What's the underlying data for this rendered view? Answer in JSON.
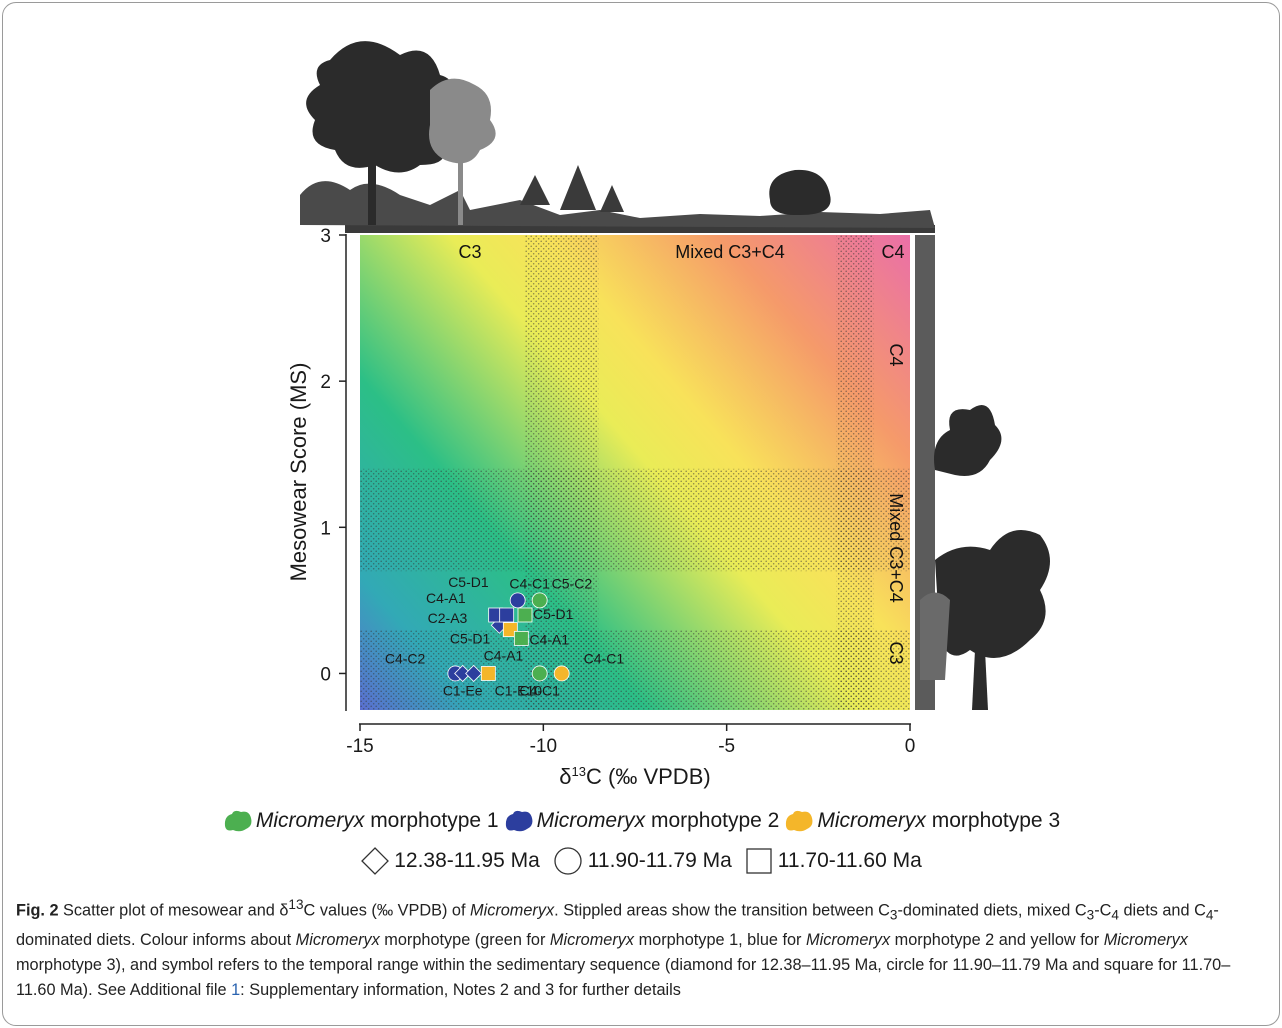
{
  "chart_data": {
    "type": "scatter",
    "xlabel_prefix": "δ",
    "xlabel_sup": "13",
    "xlabel_rest": "C (‰ VPDB)",
    "ylabel": "Mesowear Score (MS)",
    "xlim": [
      -15,
      0
    ],
    "ylim": [
      -0.25,
      3
    ],
    "xticks": [
      -15,
      -10,
      -5,
      0
    ],
    "yticks": [
      0,
      1,
      2,
      3
    ],
    "grid": false,
    "background": "diagonal gradient blue-green (low δ13C, low MS) to yellow to pink (high δ13C, high MS)",
    "stippled_x_bands": [
      [
        -10.5,
        -8.5
      ],
      [
        -2.0,
        -1.0
      ]
    ],
    "stippled_y_bands": [
      [
        0.7,
        1.4
      ],
      [
        -0.25,
        0.3
      ]
    ],
    "zone_labels_top": [
      "C3",
      "Mixed C3+C4",
      "C4"
    ],
    "zone_labels_right": [
      "C4",
      "Mixed C3+C4",
      "C3"
    ],
    "legend_morphotypes": [
      {
        "genus": "Micromeryx",
        "label": "morphotype 1",
        "color": "#4caf50"
      },
      {
        "genus": "Micromeryx",
        "label": "morphotype 2",
        "color": "#2c3e9e"
      },
      {
        "genus": "Micromeryx",
        "label": "morphotype 3",
        "color": "#f4b62a"
      }
    ],
    "legend_time": [
      {
        "shape": "diamond",
        "label": "12.38-11.95 Ma"
      },
      {
        "shape": "circle",
        "label": "11.90-11.79 Ma"
      },
      {
        "shape": "square",
        "label": "11.70-11.60 Ma"
      }
    ],
    "points": [
      {
        "x": -11.2,
        "y": 0.33,
        "morph": 2,
        "shape": "diamond",
        "label": "C2-A3"
      },
      {
        "x": -10.7,
        "y": 0.5,
        "morph": 2,
        "shape": "circle",
        "label": "C4-C1"
      },
      {
        "x": -11.3,
        "y": 0.4,
        "morph": 2,
        "shape": "square",
        "label": "C4-A1"
      },
      {
        "x": -11.0,
        "y": 0.4,
        "morph": 2,
        "shape": "square",
        "label": "C5-D1"
      },
      {
        "x": -10.1,
        "y": 0.5,
        "morph": 1,
        "shape": "circle",
        "label": "C5-C2"
      },
      {
        "x": -10.5,
        "y": 0.4,
        "morph": 1,
        "shape": "square",
        "label": "C5-D1"
      },
      {
        "x": -10.9,
        "y": 0.3,
        "morph": 3,
        "shape": "square",
        "label": "C5-D1"
      },
      {
        "x": -10.6,
        "y": 0.24,
        "morph": 1,
        "shape": "square",
        "label": "C4-A1"
      },
      {
        "x": -12.4,
        "y": 0.0,
        "morph": 2,
        "shape": "circle",
        "label": "C4-C2"
      },
      {
        "x": -12.2,
        "y": 0.0,
        "morph": 2,
        "shape": "diamond",
        "label": "C1-Ee"
      },
      {
        "x": -11.9,
        "y": 0.0,
        "morph": 2,
        "shape": "diamond",
        "label": "C4-A1"
      },
      {
        "x": -11.5,
        "y": 0.0,
        "morph": 3,
        "shape": "square",
        "label": "C1-E10"
      },
      {
        "x": -10.1,
        "y": 0.0,
        "morph": 1,
        "shape": "circle",
        "label": "C4-C1"
      },
      {
        "x": -9.5,
        "y": 0.0,
        "morph": 3,
        "shape": "circle",
        "label": "C4-C1"
      }
    ]
  },
  "caption": {
    "fig": "Fig. 2",
    "s1": " Scatter plot of mesowear and δ",
    "s1_sup": "13",
    "s2": "C values (‰ VPDB) of ",
    "genus": "Micromeryx",
    "s3": ". Stippled areas show the transition between C",
    "sub3": "3",
    "s4": "-dominated diets, mixed C",
    "sub3b": "3",
    "s5": "-C",
    "sub4": "4",
    "s6": " diets and C",
    "sub4b": "4",
    "s7": "-dominated diets. Colour informs about ",
    "genus2": "Micromeryx",
    "s8": " morphotype (green for ",
    "genus3": "Micromeryx",
    "s9": " morphotype 1, blue for ",
    "genus4": "Micromeryx",
    "s10": " morphotype 2 and yellow for ",
    "genus5": "Micromeryx",
    "s11": " morphotype 3), and symbol refers to the temporal range within the sedimentary sequence (diamond for 12.38–11.95 Ma, circle for 11.90–11.79 Ma and square for 11.70–11.60 Ma). See Additional file ",
    "link": "1",
    "s12": ": Supplementary information, Notes 2 and 3 for further details"
  }
}
